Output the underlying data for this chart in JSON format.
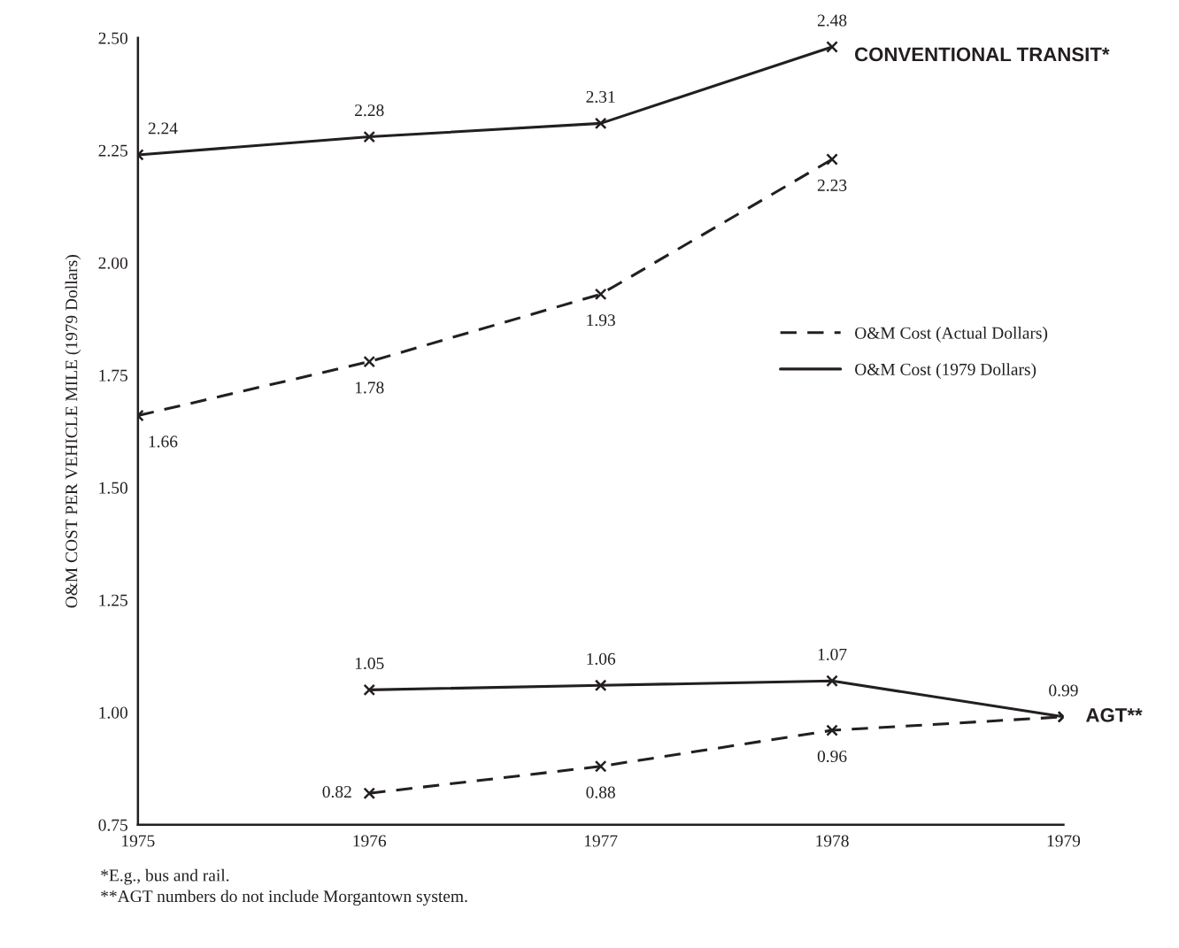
{
  "chart_data": {
    "type": "line",
    "ylabel": "O&M COST PER VEHICLE MILE (1979 Dollars)",
    "xlim": [
      1975,
      1979
    ],
    "xticks": [
      1975,
      1976,
      1977,
      1978,
      1979
    ],
    "ylim": [
      0.75,
      2.5
    ],
    "yticks": [
      {
        "value": 0.75,
        "label": "0.75"
      },
      {
        "value": 1.0,
        "label": "1.00"
      },
      {
        "value": 1.25,
        "label": "1.25"
      },
      {
        "value": 1.5,
        "label": "1.50"
      },
      {
        "value": 1.75,
        "label": "1.75"
      },
      {
        "value": 2.0,
        "label": "2.00"
      },
      {
        "value": 2.25,
        "label": "2.25"
      },
      {
        "value": 2.5,
        "label": "2.50"
      }
    ],
    "marker": "cross",
    "grid": false,
    "legend": "right",
    "series": [
      {
        "name": "O&M Cost (Actual Dollars)",
        "color": "#231f20",
        "line_style": "dashed",
        "x": [
          1975,
          1976,
          1977,
          1978
        ],
        "values": [
          1.66,
          1.78,
          1.93,
          2.23
        ],
        "value_labels": [
          "1.66",
          "1.78",
          "1.93",
          "2.23"
        ]
      },
      {
        "name": "O&M Cost (1979 Dollars)",
        "color": "#231f20",
        "line_style": "solid",
        "x": [
          1975,
          1976,
          1977,
          1978
        ],
        "values": [
          2.24,
          2.28,
          2.31,
          2.48
        ],
        "value_labels": [
          "2.24",
          "2.28",
          "2.31",
          "2.48"
        ]
      },
      {
        "color": "#231f20",
        "line_style": "solid",
        "x": [
          1976,
          1977,
          1978,
          1979
        ],
        "values": [
          1.05,
          1.06,
          1.07,
          0.99
        ],
        "value_labels": [
          "1.05",
          "1.06",
          "1.07",
          "0.99"
        ]
      },
      {
        "color": "#231f20",
        "line_style": "dashed",
        "x": [
          1976,
          1977,
          1978,
          1979
        ],
        "values": [
          0.82,
          0.88,
          0.96,
          0.99
        ],
        "value_labels": [
          "0.82",
          "0.88",
          "0.96",
          null
        ]
      }
    ],
    "annotations": [
      {
        "text": "CONVENTIONAL TRANSIT*",
        "x": 1978,
        "y": 2.48
      },
      {
        "text": "AGT**",
        "x": 1979,
        "y": 0.99
      },
      "*E.g., bus and rail.",
      "**AGT numbers do not include Morgantown system."
    ]
  }
}
